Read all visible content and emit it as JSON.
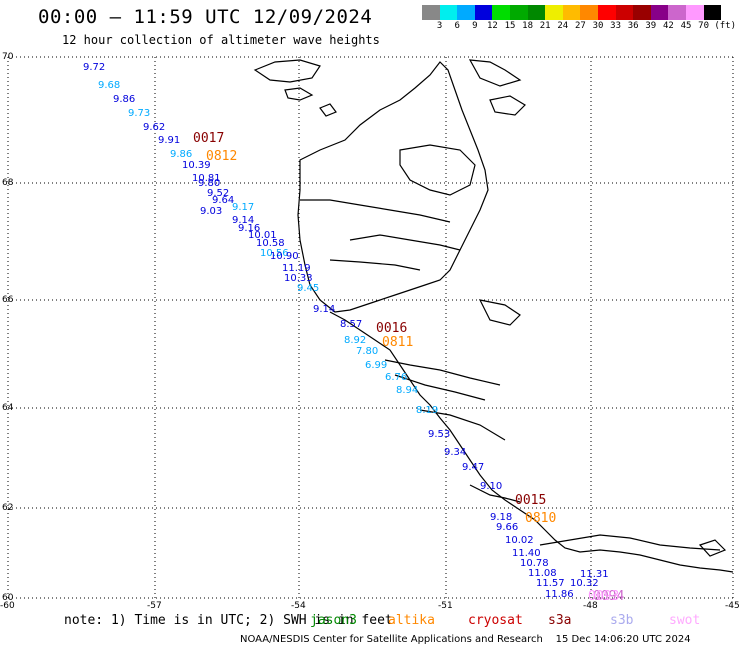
{
  "title": "00:00 – 11:59 UTC 12/09/2024",
  "subtitle": "12 hour collection of altimeter wave heights",
  "color_scale": {
    "unit": "(ft)",
    "colors": [
      "#888888",
      "#00eeee",
      "#00aaff",
      "#0000dd",
      "#00dd00",
      "#00aa00",
      "#008800",
      "#eeee00",
      "#ffbb00",
      "#ff8800",
      "#ff0000",
      "#cc0000",
      "#990000",
      "#880088",
      "#cc66cc",
      "#ff99ff",
      "#000000"
    ],
    "labels": [
      "3",
      "6",
      "9",
      "12",
      "15",
      "18",
      "21",
      "24",
      "27",
      "30",
      "33",
      "36",
      "39",
      "42",
      "45",
      "70"
    ]
  },
  "axes": {
    "lat_labels": [
      "70",
      "68",
      "66",
      "64",
      "62",
      "60"
    ],
    "lon_labels": [
      "-60",
      "-57",
      "-54",
      "-51",
      "-48",
      "-45"
    ]
  },
  "track_times": [
    {
      "text": "0017",
      "color": "#880000"
    },
    {
      "text": "0812",
      "color": "#ff8800"
    },
    {
      "text": "0016",
      "color": "#880000"
    },
    {
      "text": "0811",
      "color": "#ff8800"
    },
    {
      "text": "0015",
      "color": "#880000"
    },
    {
      "text": "0810",
      "color": "#ff8800"
    },
    {
      "text": "0094",
      "color": "#cc66cc"
    },
    {
      "text": "0093",
      "color": "#ff99ff"
    }
  ],
  "swh_labels": [
    {
      "text": "9.72",
      "color": "#0000dd"
    },
    {
      "text": "9.68",
      "color": "#00aaff"
    },
    {
      "text": "9.86",
      "color": "#0000dd"
    },
    {
      "text": "9.73",
      "color": "#00aaff"
    },
    {
      "text": "9.62",
      "color": "#0000dd"
    },
    {
      "text": "9.91",
      "color": "#0000dd"
    },
    {
      "text": "9.86",
      "color": "#00aaff"
    },
    {
      "text": "10.39",
      "color": "#0000dd"
    },
    {
      "text": "10.81",
      "color": "#0000dd"
    },
    {
      "text": "9.80",
      "color": "#0000dd"
    },
    {
      "text": "9.52",
      "color": "#0000dd"
    },
    {
      "text": "9.64",
      "color": "#0000dd"
    },
    {
      "text": "9.03",
      "color": "#0000dd"
    },
    {
      "text": "9.17",
      "color": "#00aaff"
    },
    {
      "text": "9.14",
      "color": "#0000dd"
    },
    {
      "text": "9.16",
      "color": "#0000dd"
    },
    {
      "text": "10.01",
      "color": "#0000dd"
    },
    {
      "text": "10.58",
      "color": "#0000dd"
    },
    {
      "text": "10.56",
      "color": "#00aaff"
    },
    {
      "text": "10.90",
      "color": "#0000dd"
    },
    {
      "text": "11.19",
      "color": "#0000dd"
    },
    {
      "text": "10.33",
      "color": "#0000dd"
    },
    {
      "text": "9.45",
      "color": "#00aaff"
    },
    {
      "text": "9.14",
      "color": "#0000dd"
    },
    {
      "text": "8.57",
      "color": "#0000dd"
    },
    {
      "text": "8.92",
      "color": "#00aaff"
    },
    {
      "text": "7.80",
      "color": "#00aaff"
    },
    {
      "text": "6.99",
      "color": "#00aaff"
    },
    {
      "text": "6.76",
      "color": "#00aaff"
    },
    {
      "text": "8.94",
      "color": "#00aaff"
    },
    {
      "text": "8.19",
      "color": "#00aaff"
    },
    {
      "text": "9.53",
      "color": "#0000dd"
    },
    {
      "text": "9.34",
      "color": "#0000dd"
    },
    {
      "text": "9.47",
      "color": "#0000dd"
    },
    {
      "text": "9.10",
      "color": "#0000dd"
    },
    {
      "text": "9.18",
      "color": "#0000dd"
    },
    {
      "text": "9.66",
      "color": "#0000dd"
    },
    {
      "text": "10.02",
      "color": "#0000dd"
    },
    {
      "text": "11.40",
      "color": "#0000dd"
    },
    {
      "text": "10.78",
      "color": "#0000dd"
    },
    {
      "text": "11.08",
      "color": "#0000dd"
    },
    {
      "text": "11.57",
      "color": "#0000dd"
    },
    {
      "text": "10.32",
      "color": "#0000dd"
    },
    {
      "text": "11.31",
      "color": "#0000dd"
    },
    {
      "text": "11.86",
      "color": "#0000dd"
    }
  ],
  "note": "note: 1) Time is in UTC; 2) SWH is in feet",
  "satellites": [
    {
      "name": "jason3",
      "color": "#008800"
    },
    {
      "name": "altika",
      "color": "#ff8800"
    },
    {
      "name": "cryosat",
      "color": "#cc0000"
    },
    {
      "name": "s3a",
      "color": "#880000"
    },
    {
      "name": "s3b",
      "color": "#aaaaee"
    },
    {
      "name": "swot",
      "color": "#ffaaff"
    }
  ],
  "credit": "NOAA/NESDIS Center for Satellite Applications and Research",
  "generated": "15 Dec 14:06:20 UTC 2024"
}
